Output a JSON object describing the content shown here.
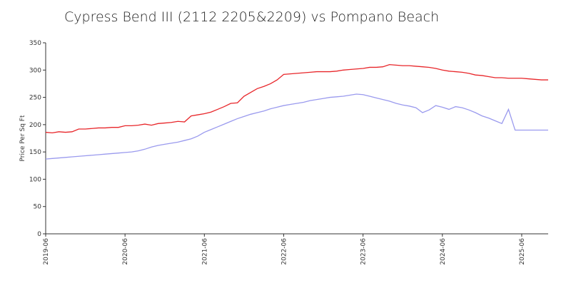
{
  "chart_data": {
    "type": "line",
    "title": "Cypress Bend III (2112 2205&2209) vs Pompano Beach",
    "y_label": "Price Per Sq Ft",
    "x": [
      "2019-06",
      "2019-07",
      "2019-08",
      "2019-09",
      "2019-10",
      "2019-11",
      "2019-12",
      "2020-01",
      "2020-02",
      "2020-03",
      "2020-04",
      "2020-05",
      "2020-06",
      "2020-07",
      "2020-08",
      "2020-09",
      "2020-10",
      "2020-11",
      "2020-12",
      "2021-01",
      "2021-02",
      "2021-03",
      "2021-04",
      "2021-05",
      "2021-06",
      "2021-07",
      "2021-08",
      "2021-09",
      "2021-10",
      "2021-11",
      "2021-12",
      "2022-01",
      "2022-02",
      "2022-03",
      "2022-04",
      "2022-05",
      "2022-06",
      "2022-07",
      "2022-08",
      "2022-09",
      "2022-10",
      "2022-11",
      "2022-12",
      "2023-01",
      "2023-02",
      "2023-03",
      "2023-04",
      "2023-05",
      "2023-06",
      "2023-07",
      "2023-08",
      "2023-09",
      "2023-10",
      "2023-11",
      "2023-12",
      "2024-01",
      "2024-02",
      "2024-03",
      "2024-04",
      "2024-05",
      "2024-06",
      "2024-07",
      "2024-08",
      "2024-09",
      "2024-10",
      "2024-11",
      "2024-12",
      "2025-01",
      "2025-02",
      "2025-03",
      "2025-04",
      "2025-05",
      "2025-06",
      "2025-07",
      "2025-08",
      "2025-09",
      "2025-10"
    ],
    "series": [
      {
        "color": "#e8262a",
        "values": [
          186,
          185,
          187,
          186,
          187,
          192,
          192,
          193,
          194,
          194,
          195,
          195,
          198,
          198,
          199,
          201,
          199,
          202,
          203,
          204,
          206,
          205,
          216,
          218,
          220,
          223,
          228,
          233,
          239,
          240,
          252,
          259,
          266,
          270,
          275,
          282,
          292,
          293,
          294,
          295,
          296,
          297,
          297,
          297,
          298,
          300,
          301,
          302,
          303,
          305,
          305,
          306,
          310,
          309,
          308,
          308,
          307,
          306,
          305,
          303,
          300,
          298,
          297,
          296,
          294,
          291,
          290,
          288,
          286,
          286,
          285,
          285,
          285,
          284,
          283,
          282,
          282
        ]
      },
      {
        "color": "#9a9aee",
        "values": [
          137,
          138,
          139,
          140,
          141,
          142,
          143,
          144,
          145,
          146,
          147,
          148,
          149,
          150,
          152,
          155,
          159,
          162,
          164,
          166,
          168,
          171,
          174,
          179,
          186,
          191,
          196,
          201,
          206,
          211,
          215,
          219,
          222,
          225,
          229,
          232,
          235,
          237,
          239,
          241,
          244,
          246,
          248,
          250,
          251,
          252,
          254,
          256,
          255,
          252,
          249,
          246,
          243,
          239,
          236,
          234,
          231,
          222,
          227,
          235,
          232,
          228,
          233,
          231,
          227,
          222,
          216,
          212,
          207,
          202,
          228,
          190,
          190,
          190,
          190,
          190,
          190
        ]
      }
    ],
    "xlim": [
      "2019-06",
      "2025-10"
    ],
    "xticks": [
      "2019-06",
      "2020-06",
      "2021-06",
      "2022-06",
      "2023-06",
      "2024-06",
      "2025-06"
    ],
    "ylim": [
      0,
      350
    ],
    "yticks": [
      0,
      50,
      100,
      150,
      200,
      250,
      300,
      350
    ],
    "grid": false
  }
}
